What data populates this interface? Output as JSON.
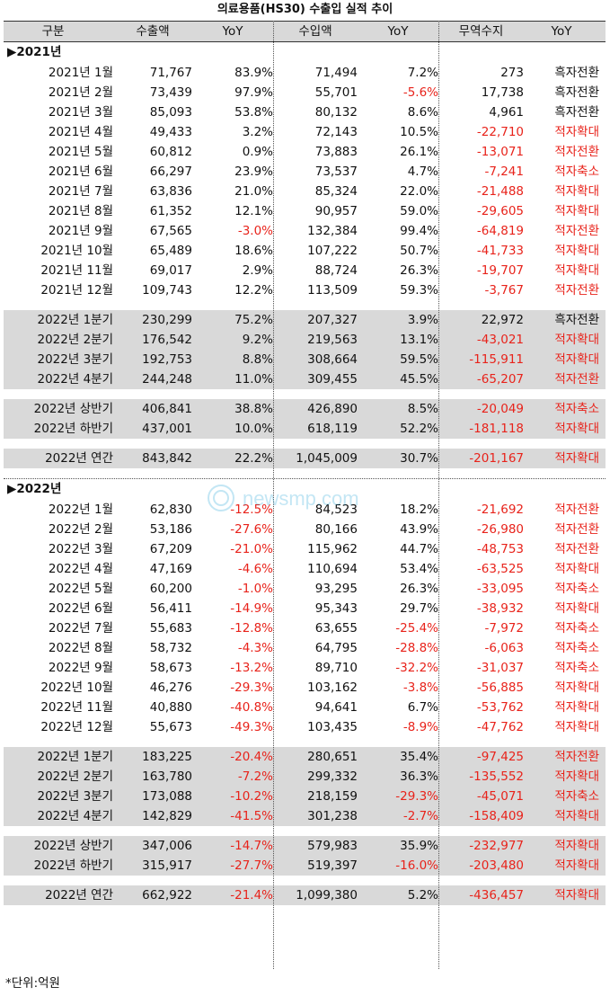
{
  "title": "의료용품(HS30) 수출입 실적 추이",
  "columns": [
    "구분",
    "수출액",
    "YoY",
    "수입액",
    "YoY",
    "무역수지",
    "YoY"
  ],
  "footer": "*단위:억원",
  "watermark": "newsmp.com",
  "colors": {
    "negative": "#e8231b",
    "shade": "#d9d9d9"
  },
  "sections": [
    {
      "label": "▶2021년",
      "groups": [
        {
          "shaded": false,
          "rows": [
            [
              "2021년 1월",
              "71,767",
              "83.9%",
              "71,494",
              "7.2%",
              "273",
              "흑자전환"
            ],
            [
              "2021년 2월",
              "73,439",
              "97.9%",
              "55,701",
              "-5.6%",
              "17,738",
              "흑자전환"
            ],
            [
              "2021년 3월",
              "85,093",
              "53.8%",
              "80,132",
              "8.6%",
              "4,961",
              "흑자전환"
            ],
            [
              "2021년 4월",
              "49,433",
              "3.2%",
              "72,143",
              "10.5%",
              "-22,710",
              "적자확대"
            ],
            [
              "2021년 5월",
              "60,812",
              "0.9%",
              "73,883",
              "26.1%",
              "-13,071",
              "적자전환"
            ],
            [
              "2021년 6월",
              "66,297",
              "23.9%",
              "73,537",
              "4.7%",
              "-7,241",
              "적자축소"
            ],
            [
              "2021년 7월",
              "63,836",
              "21.0%",
              "85,324",
              "22.0%",
              "-21,488",
              "적자확대"
            ],
            [
              "2021년 8월",
              "61,352",
              "12.1%",
              "90,957",
              "59.0%",
              "-29,605",
              "적자확대"
            ],
            [
              "2021년 9월",
              "67,565",
              "-3.0%",
              "132,384",
              "99.4%",
              "-64,819",
              "적자전환"
            ],
            [
              "2021년 10월",
              "65,489",
              "18.6%",
              "107,222",
              "50.7%",
              "-41,733",
              "적자확대"
            ],
            [
              "2021년 11월",
              "69,017",
              "2.9%",
              "88,724",
              "26.3%",
              "-19,707",
              "적자확대"
            ],
            [
              "2021년 12월",
              "109,743",
              "12.2%",
              "113,509",
              "59.3%",
              "-3,767",
              "적자전환"
            ]
          ]
        },
        {
          "shaded": true,
          "rows": [
            [
              "2022년 1분기",
              "230,299",
              "75.2%",
              "207,327",
              "3.9%",
              "22,972",
              "흑자전환"
            ],
            [
              "2022년 2분기",
              "176,542",
              "9.2%",
              "219,563",
              "13.1%",
              "-43,021",
              "적자확대"
            ],
            [
              "2022년 3분기",
              "192,753",
              "8.8%",
              "308,664",
              "59.5%",
              "-115,911",
              "적자확대"
            ],
            [
              "2022년 4분기",
              "244,248",
              "11.0%",
              "309,455",
              "45.5%",
              "-65,207",
              "적자전환"
            ]
          ]
        },
        {
          "shaded": true,
          "rows": [
            [
              "2022년 상반기",
              "406,841",
              "38.8%",
              "426,890",
              "8.5%",
              "-20,049",
              "적자축소"
            ],
            [
              "2022년 하반기",
              "437,001",
              "10.0%",
              "618,119",
              "52.2%",
              "-181,118",
              "적자확대"
            ]
          ]
        },
        {
          "shaded": true,
          "rows": [
            [
              "2022년 연간",
              "843,842",
              "22.2%",
              "1,045,009",
              "30.7%",
              "-201,167",
              "적자확대"
            ]
          ]
        }
      ]
    },
    {
      "label": "▶2022년",
      "groups": [
        {
          "shaded": false,
          "rows": [
            [
              "2022년 1월",
              "62,830",
              "-12.5%",
              "84,523",
              "18.2%",
              "-21,692",
              "적자전환"
            ],
            [
              "2022년 2월",
              "53,186",
              "-27.6%",
              "80,166",
              "43.9%",
              "-26,980",
              "적자전환"
            ],
            [
              "2022년 3월",
              "67,209",
              "-21.0%",
              "115,962",
              "44.7%",
              "-48,753",
              "적자전환"
            ],
            [
              "2022년 4월",
              "47,169",
              "-4.6%",
              "110,694",
              "53.4%",
              "-63,525",
              "적자확대"
            ],
            [
              "2022년 5월",
              "60,200",
              "-1.0%",
              "93,295",
              "26.3%",
              "-33,095",
              "적자축소"
            ],
            [
              "2022년 6월",
              "56,411",
              "-14.9%",
              "95,343",
              "29.7%",
              "-38,932",
              "적자확대"
            ],
            [
              "2022년 7월",
              "55,683",
              "-12.8%",
              "63,655",
              "-25.4%",
              "-7,972",
              "적자축소"
            ],
            [
              "2022년 8월",
              "58,732",
              "-4.3%",
              "64,795",
              "-28.8%",
              "-6,063",
              "적자축소"
            ],
            [
              "2022년 9월",
              "58,673",
              "-13.2%",
              "89,710",
              "-32.2%",
              "-31,037",
              "적자축소"
            ],
            [
              "2022년 10월",
              "46,276",
              "-29.3%",
              "103,162",
              "-3.8%",
              "-56,885",
              "적자확대"
            ],
            [
              "2022년 11월",
              "40,880",
              "-40.8%",
              "94,641",
              "6.7%",
              "-53,762",
              "적자확대"
            ],
            [
              "2022년 12월",
              "55,673",
              "-49.3%",
              "103,435",
              "-8.9%",
              "-47,762",
              "적자확대"
            ]
          ]
        },
        {
          "shaded": true,
          "rows": [
            [
              "2022년 1분기",
              "183,225",
              "-20.4%",
              "280,651",
              "35.4%",
              "-97,425",
              "적자전환"
            ],
            [
              "2022년 2분기",
              "163,780",
              "-7.2%",
              "299,332",
              "36.3%",
              "-135,552",
              "적자확대"
            ],
            [
              "2022년 3분기",
              "173,088",
              "-10.2%",
              "218,159",
              "-29.3%",
              "-45,071",
              "적자축소"
            ],
            [
              "2022년 4분기",
              "142,829",
              "-41.5%",
              "301,238",
              "-2.7%",
              "-158,409",
              "적자확대"
            ]
          ]
        },
        {
          "shaded": true,
          "rows": [
            [
              "2022년 상반기",
              "347,006",
              "-14.7%",
              "579,983",
              "35.9%",
              "-232,977",
              "적자확대"
            ],
            [
              "2022년 하반기",
              "315,917",
              "-27.7%",
              "519,397",
              "-16.0%",
              "-203,480",
              "적자확대"
            ]
          ]
        },
        {
          "shaded": true,
          "rows": [
            [
              "2022년 연간",
              "662,922",
              "-21.4%",
              "1,099,380",
              "5.2%",
              "-436,457",
              "적자확대"
            ]
          ]
        }
      ]
    }
  ]
}
